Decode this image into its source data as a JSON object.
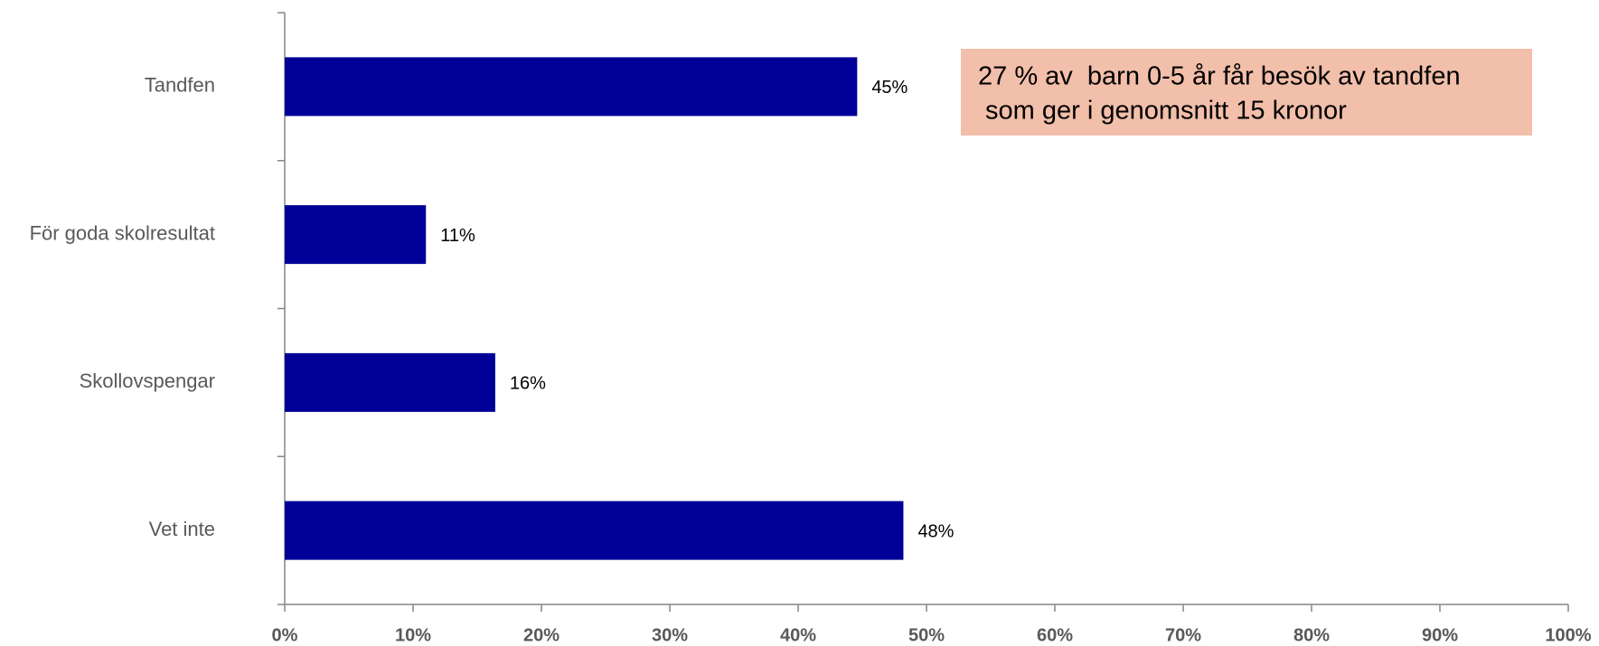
{
  "chart_data": {
    "type": "bar",
    "orientation": "horizontal",
    "categories": [
      "Tandfen",
      "För goda skolresultat",
      "Skollovspengar",
      "Vet inte"
    ],
    "values": [
      44.6,
      11,
      16.4,
      48.2
    ],
    "value_labels": [
      "45%",
      "11%",
      "16%",
      "48%"
    ],
    "color": "#000099",
    "xlim": [
      0,
      100
    ],
    "xticks": [
      {
        "value": 0,
        "label": "0%"
      },
      {
        "value": 10,
        "label": "10%"
      },
      {
        "value": 20,
        "label": "20%"
      },
      {
        "value": 30,
        "label": "30%"
      },
      {
        "value": 40,
        "label": "40%"
      },
      {
        "value": 50,
        "label": "50%"
      },
      {
        "value": 60,
        "label": "60%"
      },
      {
        "value": 70,
        "label": "70%"
      },
      {
        "value": 80,
        "label": "80%"
      },
      {
        "value": 90,
        "label": "90%"
      },
      {
        "value": 100,
        "label": "100%"
      }
    ],
    "annotation": [
      "27 % av  barn 0-5 år får besök av tandfen",
      " som ger i genomsnitt 15 kronor"
    ],
    "annotation_color": "#f2bfaa"
  }
}
